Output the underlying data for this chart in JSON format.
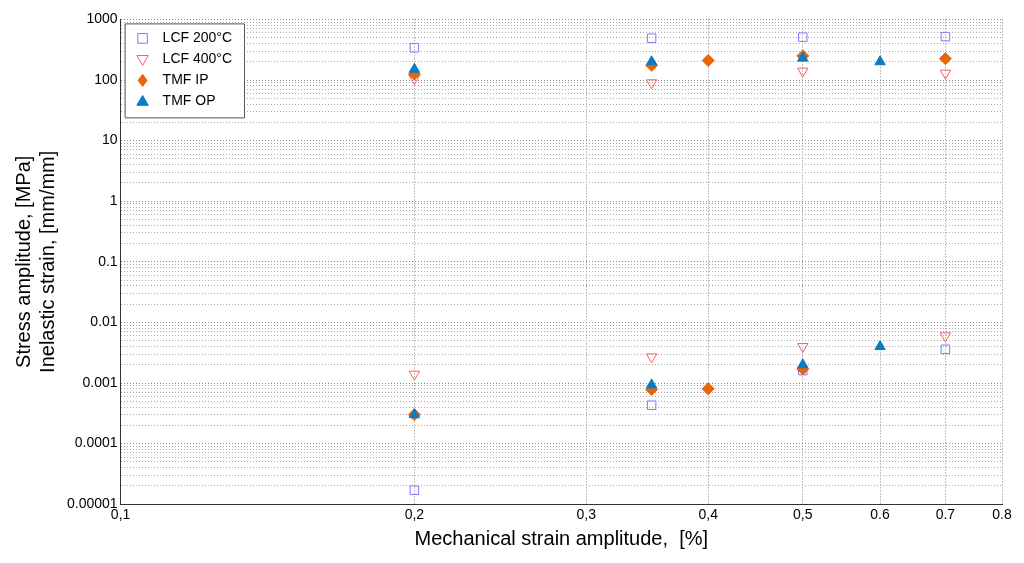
{
  "chart_data": {
    "type": "scatter",
    "xlabel": "Mechanical strain amplitude,  [%]",
    "ylabel": "Stress amplitude, [MPa]\nInelastic strain, [mm/mm]",
    "log": "xy",
    "xlim": [
      0.1,
      0.8
    ],
    "xticks": [
      {
        "value": 0.1,
        "label": "0,1"
      },
      {
        "value": 0.2,
        "label": "0,2"
      },
      {
        "value": 0.3,
        "label": "0,3"
      },
      {
        "value": 0.4,
        "label": "0,4"
      },
      {
        "value": 0.5,
        "label": "0,5"
      },
      {
        "value": 0.6,
        "label": "0.6"
      },
      {
        "value": 0.7,
        "label": "0.7"
      },
      {
        "value": 0.8,
        "label": "0.8"
      }
    ],
    "ylim": [
      1e-05,
      1000
    ],
    "yticks": [
      {
        "value": 1e-05,
        "label": "0.00001"
      },
      {
        "value": 2e-05,
        "label": null
      },
      {
        "value": 3e-05,
        "label": null
      },
      {
        "value": 4e-05,
        "label": null
      },
      {
        "value": 5e-05,
        "label": null
      },
      {
        "value": 6e-05,
        "label": null
      },
      {
        "value": 7e-05,
        "label": null
      },
      {
        "value": 8e-05,
        "label": null
      },
      {
        "value": 9e-05,
        "label": null
      },
      0.0001,
      {
        "value": 0.0002,
        "label": null
      },
      {
        "value": 0.0003,
        "label": null
      },
      {
        "value": 0.0004,
        "label": null
      },
      {
        "value": 0.0005,
        "label": null
      },
      {
        "value": 0.0006,
        "label": null
      },
      {
        "value": 0.0007,
        "label": null
      },
      {
        "value": 0.0008,
        "label": null
      },
      {
        "value": 0.0009,
        "label": null
      },
      0.001,
      {
        "value": 0.002,
        "label": null
      },
      {
        "value": 0.003,
        "label": null
      },
      {
        "value": 0.004,
        "label": null
      },
      {
        "value": 0.005,
        "label": null
      },
      {
        "value": 0.006,
        "label": null
      },
      {
        "value": 0.007,
        "label": null
      },
      {
        "value": 0.008,
        "label": null
      },
      {
        "value": 0.009,
        "label": null
      },
      0.01,
      {
        "value": 0.02,
        "label": null
      },
      {
        "value": 0.03,
        "label": null
      },
      {
        "value": 0.04,
        "label": null
      },
      {
        "value": 0.05,
        "label": null
      },
      {
        "value": 0.06,
        "label": null
      },
      {
        "value": 0.07,
        "label": null
      },
      {
        "value": 0.08,
        "label": null
      },
      {
        "value": 0.09,
        "label": null
      },
      0.1,
      {
        "value": 0.2,
        "label": null
      },
      {
        "value": 0.3,
        "label": null
      },
      {
        "value": 0.4,
        "label": null
      },
      {
        "value": 0.5,
        "label": null
      },
      {
        "value": 0.6,
        "label": null
      },
      {
        "value": 0.7,
        "label": null
      },
      {
        "value": 0.8,
        "label": null
      },
      {
        "value": 0.9,
        "label": null
      },
      1,
      {
        "value": 2,
        "label": null
      },
      {
        "value": 3,
        "label": null
      },
      {
        "value": 4,
        "label": null
      },
      {
        "value": 5,
        "label": null
      },
      {
        "value": 6,
        "label": null
      },
      {
        "value": 7,
        "label": null
      },
      {
        "value": 8,
        "label": null
      },
      {
        "value": 9,
        "label": null
      },
      10,
      {
        "value": 20,
        "label": null
      },
      {
        "value": 30,
        "label": null
      },
      {
        "value": 40,
        "label": null
      },
      {
        "value": 50,
        "label": null
      },
      {
        "value": 60,
        "label": null
      },
      {
        "value": 70,
        "label": null
      },
      {
        "value": 80,
        "label": null
      },
      {
        "value": 90,
        "label": null
      },
      100,
      {
        "value": 200,
        "label": null
      },
      {
        "value": 300,
        "label": null
      },
      {
        "value": 400,
        "label": null
      },
      {
        "value": 500,
        "label": null
      },
      {
        "value": 600,
        "label": null
      },
      {
        "value": 700,
        "label": null
      },
      {
        "value": 800,
        "label": null
      },
      {
        "value": 900,
        "label": null
      },
      1000
    ],
    "grid": true,
    "legend": "top left",
    "series": [
      {
        "name": "LCF 200°C",
        "color": "#7b7bff",
        "marker": "square",
        "x": [
          0.2,
          0.35,
          0.5,
          0.7,
          0.2,
          0.35,
          0.5,
          0.7
        ],
        "values": [
          340,
          490,
          510,
          520,
          1.7e-05,
          0.00043,
          0.0016,
          0.0036
        ]
      },
      {
        "name": "LCF 400°C",
        "color": "#ff6060",
        "marker": "triangle-down",
        "x": [
          0.2,
          0.35,
          0.5,
          0.7,
          0.2,
          0.35,
          0.5,
          0.7
        ],
        "values": [
          105,
          90,
          140,
          130,
          0.0014,
          0.0027,
          0.004,
          0.006
        ]
      },
      {
        "name": "TMF IP",
        "color": "#e8650a",
        "marker": "diamond",
        "x": [
          0.2,
          0.35,
          0.4,
          0.5,
          0.7,
          0.2,
          0.35,
          0.4,
          0.5
        ],
        "values": [
          125,
          175,
          210,
          250,
          225,
          0.0003,
          0.00078,
          0.0008,
          0.0017
        ]
      },
      {
        "name": "TMF OP",
        "color": "#0a7bc4",
        "marker": "triangle",
        "x": [
          0.2,
          0.35,
          0.5,
          0.6,
          0.2,
          0.35,
          0.5,
          0.6
        ],
        "values": [
          150,
          200,
          230,
          200,
          0.0003,
          0.00093,
          0.002,
          0.004
        ]
      }
    ]
  }
}
